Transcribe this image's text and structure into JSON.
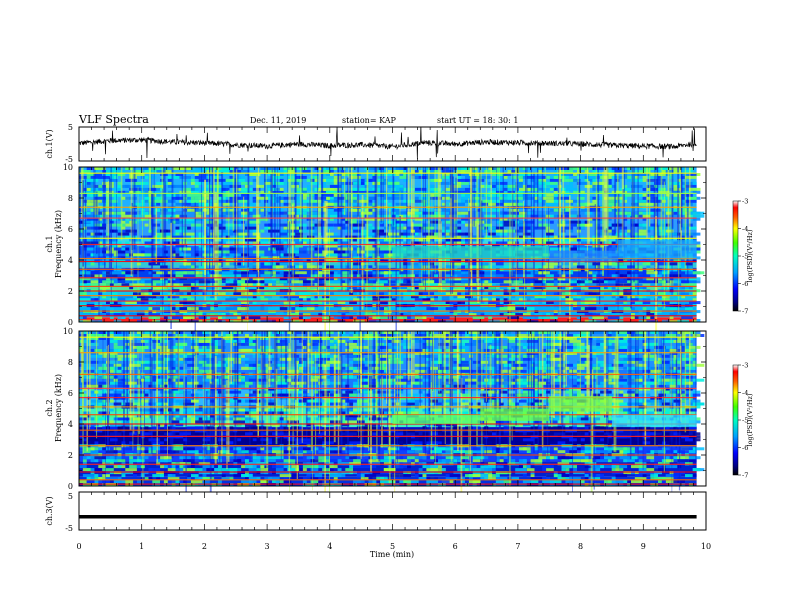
{
  "header": {
    "title": "VLF Spectra",
    "date": "Dec. 11, 2019",
    "station": "station= KAP",
    "start": "start  UT  =   18: 30: 1"
  },
  "chart_data": [
    {
      "type": "line",
      "panel": "ch1-waveform",
      "ylabel": "ch.1(V)",
      "ylim": [
        -5,
        5
      ],
      "yticks": [
        "5",
        "-5"
      ],
      "xlim": [
        0,
        10
      ],
      "note": "noisy broadband waveform around 0 V spanning 0–9.85 min",
      "x": [
        0,
        0.5,
        1,
        1.5,
        2,
        2.5,
        3,
        3.5,
        4,
        4.5,
        5,
        5.5,
        6,
        6.5,
        7,
        7.5,
        8,
        8.5,
        9,
        9.5,
        9.85
      ],
      "y": [
        0.2,
        1.0,
        1.2,
        0.6,
        0.3,
        -0.2,
        -0.6,
        0.0,
        -0.5,
        -0.2,
        -0.8,
        0.4,
        0.0,
        0.6,
        0.4,
        0.2,
        0.0,
        -0.4,
        -0.6,
        -0.8,
        0.2
      ]
    },
    {
      "type": "heatmap",
      "panel": "ch1-spectrogram",
      "ylabel": "ch.1",
      "ylabel2": "Frequency (kHz)",
      "ylim": [
        0,
        10
      ],
      "yticks": [
        "0",
        "2",
        "4",
        "6",
        "8",
        "10"
      ],
      "xlim": [
        0,
        9.85
      ],
      "colorbar": {
        "label": "log(PSD)(V²/Hz)",
        "range": [
          -7,
          -3
        ],
        "ticks": [
          "-3",
          "-4",
          "-5",
          "-6",
          "-7"
        ]
      }
    },
    {
      "type": "heatmap",
      "panel": "ch2-spectrogram",
      "ylabel": "ch.2",
      "ylabel2": "Frequency (kHz)",
      "ylim": [
        0,
        10
      ],
      "yticks": [
        "0",
        "2",
        "4",
        "6",
        "8",
        "10"
      ],
      "xlim": [
        0,
        9.85
      ],
      "colorbar": {
        "label": "log(PSD)(V²/Hz)",
        "range": [
          -7,
          -3
        ],
        "ticks": [
          "-3",
          "-4",
          "-5",
          "-6",
          "-7"
        ]
      }
    },
    {
      "type": "line",
      "panel": "ch3-waveform",
      "ylabel": "ch.3(V)",
      "ylim": [
        -5,
        5
      ],
      "yticks": [
        "5",
        "-5"
      ],
      "xlim": [
        0,
        10
      ],
      "x": [
        0,
        9.85
      ],
      "y": [
        -1.5,
        -1.5
      ]
    }
  ],
  "xaxis": {
    "label": "Time (min)",
    "ticks": [
      "0",
      "1",
      "2",
      "3",
      "4",
      "5",
      "6",
      "7",
      "8",
      "9",
      "10"
    ]
  }
}
